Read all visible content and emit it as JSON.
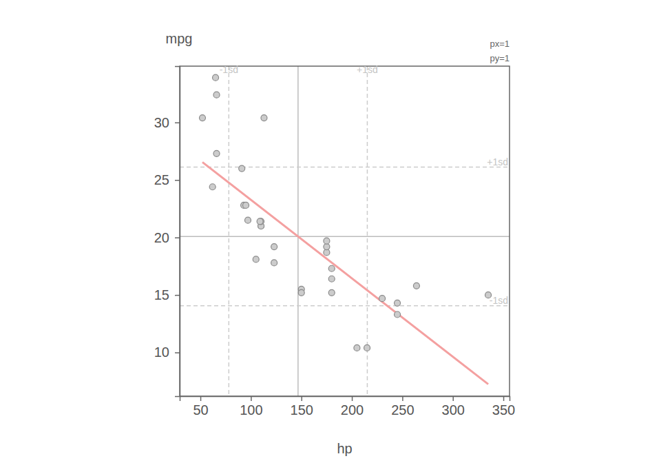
{
  "chart_data": {
    "type": "scatter",
    "x_label": "hp",
    "y_label": "mpg",
    "annotations": [
      "px=1",
      "py=1"
    ],
    "x": [
      110,
      110,
      93,
      110,
      175,
      105,
      245,
      62,
      95,
      123,
      123,
      180,
      180,
      180,
      205,
      215,
      230,
      66,
      52,
      65,
      97,
      150,
      150,
      245,
      175,
      66,
      91,
      113,
      264,
      175,
      335,
      109
    ],
    "values": [
      21.0,
      21.0,
      22.8,
      21.4,
      18.7,
      18.1,
      14.3,
      24.4,
      22.8,
      19.2,
      17.8,
      16.4,
      17.3,
      15.2,
      10.4,
      10.4,
      14.7,
      32.4,
      30.4,
      33.9,
      21.5,
      15.5,
      15.2,
      13.3,
      19.2,
      27.3,
      26.0,
      30.4,
      15.8,
      19.7,
      15.0,
      21.4
    ],
    "color": "#cccccc",
    "marker": "circle",
    "trend": {
      "x": [
        52,
        335
      ],
      "values": [
        26.55,
        7.24
      ],
      "color": "#f4a0a0"
    },
    "x_reference_lines": [
      {
        "value": 78.13,
        "label": "-1sd",
        "line_style": "dashed"
      },
      {
        "value": 146.69,
        "line_style": "solid"
      },
      {
        "value": 215.26,
        "label": "+1sd",
        "line_style": "dashed"
      }
    ],
    "y_reference_lines": [
      {
        "value": 26.12,
        "label": "+1sd",
        "line_style": "dashed"
      },
      {
        "value": 20.09,
        "line_style": "solid"
      },
      {
        "value": 14.06,
        "label": "-1sd",
        "line_style": "dashed"
      }
    ],
    "xlim": [
      29.5,
      356.1
    ],
    "ylim": [
      6.2,
      34.9
    ],
    "xticks": [
      50,
      100,
      150,
      200,
      250,
      300,
      350
    ],
    "yticks": [
      10,
      15,
      20,
      25,
      30
    ],
    "grid": false
  }
}
